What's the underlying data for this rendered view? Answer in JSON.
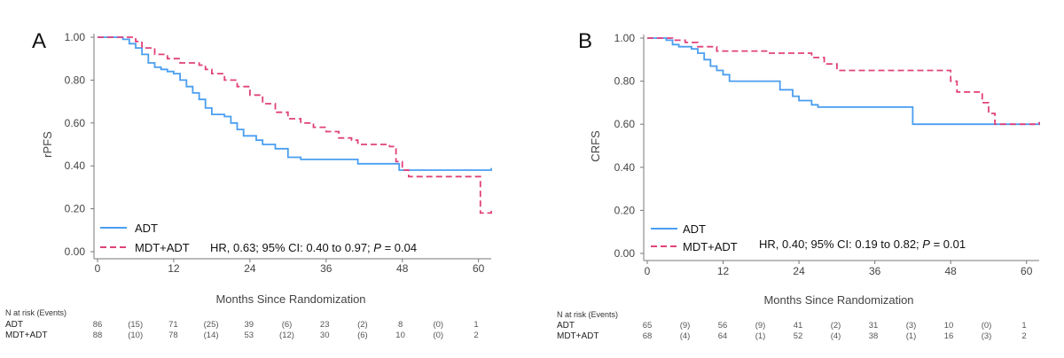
{
  "colors": {
    "adt": "#4a9ef0",
    "mdt_adt": "#e0427a",
    "axis": "#777777"
  },
  "chart_data": [
    {
      "type": "line",
      "panel": "A",
      "ylabel": "rPFS",
      "xlabel": "Months Since Randomization",
      "xlim": [
        0,
        62
      ],
      "ylim": [
        0,
        1
      ],
      "x_ticks": [
        0,
        12,
        24,
        36,
        48,
        60
      ],
      "y_ticks": [
        0.0,
        0.2,
        0.4,
        0.6,
        0.8,
        1.0
      ],
      "y_tick_labels": [
        "0.00",
        "0.20",
        "0.40",
        "0.60",
        "0.80",
        "1.00"
      ],
      "legend_position": "lower-left",
      "annotation": {
        "prefix": "HR, 0.63; 95% CI: 0.40 to 0.97; ",
        "p_symbol": "P",
        "suffix": " = 0.04"
      },
      "series": [
        {
          "name": "ADT",
          "style": "solid",
          "points": [
            [
              0,
              1.0
            ],
            [
              3,
              1.0
            ],
            [
              4,
              0.99
            ],
            [
              5,
              0.97
            ],
            [
              6,
              0.95
            ],
            [
              7,
              0.92
            ],
            [
              8,
              0.88
            ],
            [
              9,
              0.86
            ],
            [
              10,
              0.85
            ],
            [
              11,
              0.84
            ],
            [
              12,
              0.83
            ],
            [
              13,
              0.8
            ],
            [
              14,
              0.77
            ],
            [
              15,
              0.74
            ],
            [
              16,
              0.71
            ],
            [
              17,
              0.67
            ],
            [
              18,
              0.64
            ],
            [
              20,
              0.63
            ],
            [
              21,
              0.6
            ],
            [
              22,
              0.57
            ],
            [
              23,
              0.54
            ],
            [
              25,
              0.52
            ],
            [
              26,
              0.5
            ],
            [
              28,
              0.48
            ],
            [
              30,
              0.44
            ],
            [
              32,
              0.43
            ],
            [
              40,
              0.43
            ],
            [
              41,
              0.41
            ],
            [
              47,
              0.41
            ],
            [
              47.5,
              0.38
            ],
            [
              62,
              0.38
            ],
            [
              62,
              0.39
            ]
          ]
        },
        {
          "name": "MDT+ADT",
          "style": "dashed",
          "points": [
            [
              0,
              1.0
            ],
            [
              4,
              1.0
            ],
            [
              6,
              0.98
            ],
            [
              7,
              0.95
            ],
            [
              9,
              0.92
            ],
            [
              11,
              0.9
            ],
            [
              13,
              0.88
            ],
            [
              16,
              0.87
            ],
            [
              17,
              0.85
            ],
            [
              18,
              0.83
            ],
            [
              20,
              0.8
            ],
            [
              22,
              0.77
            ],
            [
              24,
              0.73
            ],
            [
              26,
              0.69
            ],
            [
              28,
              0.65
            ],
            [
              30,
              0.62
            ],
            [
              32,
              0.6
            ],
            [
              34,
              0.58
            ],
            [
              36,
              0.56
            ],
            [
              38,
              0.53
            ],
            [
              40,
              0.52
            ],
            [
              41,
              0.5
            ],
            [
              46,
              0.49
            ],
            [
              47,
              0.42
            ],
            [
              48,
              0.38
            ],
            [
              49,
              0.35
            ],
            [
              60,
              0.35
            ],
            [
              60.3,
              0.18
            ],
            [
              62,
              0.18
            ],
            [
              62,
              0.19
            ]
          ]
        }
      ],
      "risk_table": {
        "title": "N at risk (Events)",
        "rows": [
          {
            "label": "ADT",
            "values": [
              "86",
              "(15)",
              "71",
              "(25)",
              "39",
              "(6)",
              "23",
              "(2)",
              "8",
              "(0)",
              "1"
            ]
          },
          {
            "label": "MDT+ADT",
            "values": [
              "88",
              "(10)",
              "78",
              "(14)",
              "53",
              "(12)",
              "30",
              "(6)",
              "10",
              "(0)",
              "2"
            ]
          }
        ]
      }
    },
    {
      "type": "line",
      "panel": "B",
      "ylabel": "CRFS",
      "xlabel": "Months Since Randomization",
      "xlim": [
        0,
        62
      ],
      "ylim": [
        0,
        1
      ],
      "x_ticks": [
        0,
        12,
        24,
        36,
        48,
        60
      ],
      "y_ticks": [
        0.0,
        0.2,
        0.4,
        0.6,
        0.8,
        1.0
      ],
      "y_tick_labels": [
        "0.00",
        "0.20",
        "0.40",
        "0.60",
        "0.80",
        "1.00"
      ],
      "legend_position": "lower-left",
      "annotation": {
        "prefix": "HR, 0.40; 95% CI: 0.19 to 0.82; ",
        "p_symbol": "P",
        "suffix": " = 0.01"
      },
      "series": [
        {
          "name": "ADT",
          "style": "solid",
          "points": [
            [
              0,
              1.0
            ],
            [
              2,
              1.0
            ],
            [
              3,
              0.99
            ],
            [
              4,
              0.97
            ],
            [
              5,
              0.96
            ],
            [
              7,
              0.95
            ],
            [
              8,
              0.93
            ],
            [
              9,
              0.9
            ],
            [
              10,
              0.87
            ],
            [
              11,
              0.85
            ],
            [
              12,
              0.83
            ],
            [
              13,
              0.8
            ],
            [
              20,
              0.8
            ],
            [
              21,
              0.76
            ],
            [
              23,
              0.73
            ],
            [
              24,
              0.71
            ],
            [
              26,
              0.69
            ],
            [
              27,
              0.68
            ],
            [
              41.5,
              0.68
            ],
            [
              42,
              0.6
            ],
            [
              62,
              0.6
            ],
            [
              62,
              0.61
            ]
          ]
        },
        {
          "name": "MDT+ADT",
          "style": "dashed",
          "points": [
            [
              0,
              1.0
            ],
            [
              3,
              1.0
            ],
            [
              4,
              0.99
            ],
            [
              6,
              0.98
            ],
            [
              8,
              0.96
            ],
            [
              11,
              0.94
            ],
            [
              17,
              0.94
            ],
            [
              19,
              0.93
            ],
            [
              25,
              0.93
            ],
            [
              26,
              0.91
            ],
            [
              28,
              0.88
            ],
            [
              30,
              0.85
            ],
            [
              47.5,
              0.85
            ],
            [
              48,
              0.8
            ],
            [
              49,
              0.75
            ],
            [
              52,
              0.75
            ],
            [
              53,
              0.7
            ],
            [
              54,
              0.65
            ],
            [
              55,
              0.6
            ],
            [
              62,
              0.6
            ],
            [
              62,
              0.61
            ]
          ]
        }
      ],
      "risk_table": {
        "title": "N at risk (Events)",
        "rows": [
          {
            "label": "ADT",
            "values": [
              "65",
              "(9)",
              "56",
              "(9)",
              "41",
              "(2)",
              "31",
              "(3)",
              "10",
              "(0)",
              "1"
            ]
          },
          {
            "label": "MDT+ADT",
            "values": [
              "68",
              "(4)",
              "64",
              "(1)",
              "52",
              "(4)",
              "38",
              "(1)",
              "16",
              "(3)",
              "2"
            ]
          }
        ]
      }
    }
  ]
}
